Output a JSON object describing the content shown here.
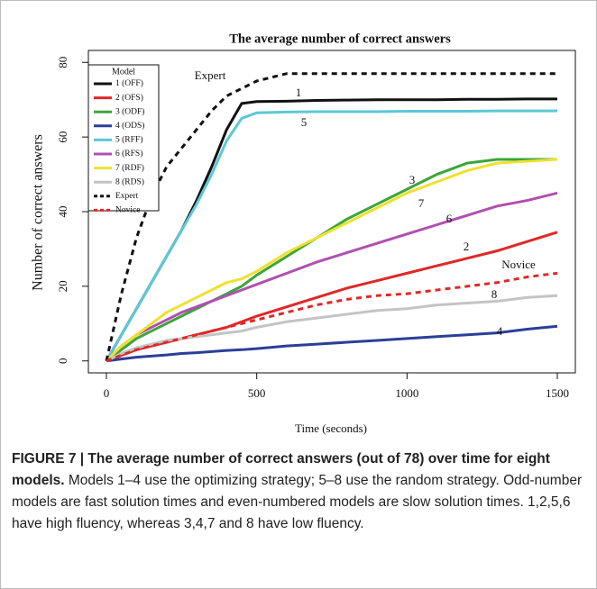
{
  "chart_data": {
    "type": "line",
    "title": "The average number of correct answers",
    "xlabel": "Time (seconds)",
    "ylabel": "Number of correct answers",
    "x": [
      0,
      50,
      100,
      150,
      200,
      250,
      300,
      350,
      400,
      450,
      500,
      600,
      700,
      800,
      900,
      1000,
      1100,
      1200,
      1300,
      1400,
      1500
    ],
    "xlim": [
      -60,
      1560
    ],
    "xticks": [
      0,
      500,
      1000,
      1500
    ],
    "ylim": [
      -3.2,
      83.2
    ],
    "yticks": [
      0,
      20,
      40,
      60,
      80
    ],
    "legend_title": "Model",
    "legend": "upper left",
    "series": [
      {
        "name": "1 (OFF)",
        "color": "#111111",
        "dashed": false,
        "values": [
          0,
          7,
          14,
          21,
          28,
          35,
          43,
          52,
          62,
          69,
          69.5,
          69.6,
          69.8,
          69.9,
          70,
          70,
          70,
          70.1,
          70.1,
          70.2,
          70.2
        ]
      },
      {
        "name": "2 (OFS)",
        "color": "#e02828",
        "dashed": false,
        "values": [
          0,
          1.5,
          3,
          4,
          5,
          6,
          7,
          8,
          9,
          10.5,
          12,
          14.5,
          17,
          19.5,
          21.5,
          23.5,
          25.5,
          27.5,
          29.5,
          32,
          34.5
        ]
      },
      {
        "name": "3 (ODF)",
        "color": "#3aa63a",
        "dashed": false,
        "values": [
          0,
          3,
          6,
          8,
          10,
          12,
          14,
          16,
          18,
          20,
          23,
          28,
          33,
          38,
          42,
          46,
          50,
          53,
          54,
          54,
          54
        ]
      },
      {
        "name": "4 (ODS)",
        "color": "#2b3f99",
        "dashed": false,
        "values": [
          0,
          0.5,
          1,
          1.3,
          1.6,
          2,
          2.2,
          2.5,
          2.8,
          3,
          3.3,
          4,
          4.5,
          5,
          5.5,
          6,
          6.5,
          7,
          7.5,
          8.5,
          9.3
        ]
      },
      {
        "name": "5 (RFF)",
        "color": "#5bc8d8",
        "dashed": false,
        "values": [
          0,
          7,
          14,
          21,
          28,
          35,
          42,
          50,
          59,
          65,
          66.5,
          66.7,
          66.8,
          66.8,
          66.8,
          66.9,
          66.9,
          66.9,
          67,
          67,
          67
        ]
      },
      {
        "name": "6 (RFS)",
        "color": "#b050b0",
        "dashed": false,
        "values": [
          0,
          4,
          7,
          9,
          11,
          13,
          14.5,
          16,
          17.5,
          19,
          20.5,
          23.5,
          26.5,
          29,
          31.5,
          34,
          36.5,
          39,
          41.5,
          43,
          45
        ]
      },
      {
        "name": "7 (RDF)",
        "color": "#f0e030",
        "dashed": false,
        "values": [
          0,
          4,
          7,
          10,
          13,
          15,
          17,
          19,
          21,
          22,
          24,
          29,
          33,
          37,
          41,
          45,
          48,
          51,
          53,
          53.5,
          54
        ]
      },
      {
        "name": "8 (RDS)",
        "color": "#c4c4c4",
        "dashed": false,
        "values": [
          0,
          2,
          3.5,
          4.5,
          5.5,
          6,
          6.5,
          7,
          7.5,
          8,
          9,
          10.5,
          11.5,
          12.5,
          13.5,
          14,
          15,
          15.5,
          16,
          17,
          17.5
        ]
      },
      {
        "name": "Expert",
        "color": "#111111",
        "dashed": true,
        "values": [
          0,
          18,
          33,
          44,
          52,
          57,
          62,
          67,
          71,
          73,
          75,
          77,
          77,
          77,
          77,
          77,
          77,
          77,
          77,
          77,
          77
        ]
      },
      {
        "name": "Novice",
        "color": "#e02828",
        "dashed": true,
        "values": [
          0,
          1.5,
          3,
          4,
          5,
          6,
          7,
          8,
          9,
          10,
          11,
          13,
          15,
          16.5,
          17.5,
          18,
          19,
          20,
          21,
          22.5,
          23.5
        ]
      }
    ],
    "annotations": [
      "Expert",
      "1",
      "5",
      "3",
      "7",
      "6",
      "2",
      "Novice",
      "8",
      "4"
    ]
  },
  "caption": {
    "label": "FIGURE 7 | The average number of correct answers (out of 78) over time for eight models.",
    "text": "Models 1–4 use the optimizing strategy; 5–8 use the random strategy. Odd-number models are fast solution times and even-numbered models are slow solution times. 1,2,5,6 have high fluency, whereas 3,4,7 and 8 have low fluency."
  }
}
